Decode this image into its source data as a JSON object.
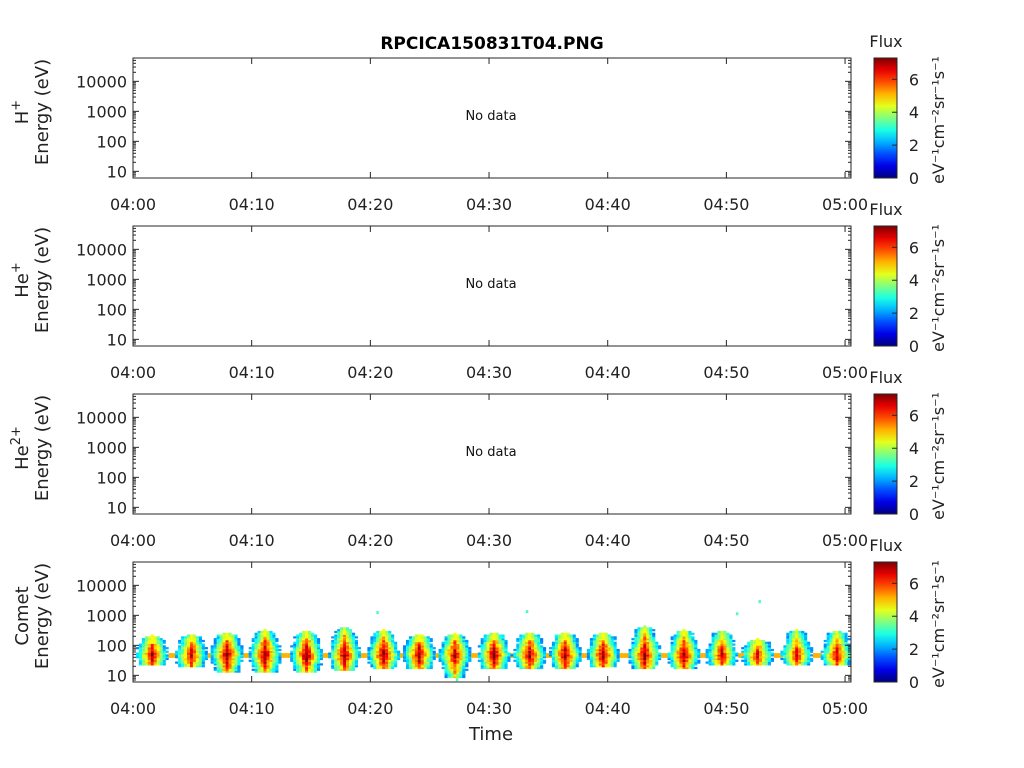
{
  "chart_data": {
    "type": "heatmap",
    "title": "RPCICA150831T04.PNG",
    "xlabel": "Time",
    "x_ticks": [
      "04:00",
      "04:10",
      "04:20",
      "04:30",
      "04:40",
      "04:50",
      "05:00"
    ],
    "xlim_minutes": [
      0,
      60.5
    ],
    "y_scale": "log",
    "y_ticks": [
      10,
      100,
      1000,
      10000
    ],
    "ylim": [
      6,
      60000
    ],
    "colorbar": {
      "title": "Flux",
      "units": "eV⁻¹cm⁻²sr⁻¹s⁻¹",
      "ticks": [
        0,
        2,
        4,
        6
      ],
      "range": [
        0,
        7.3
      ],
      "colormap": "jet"
    },
    "panels": [
      {
        "id": "h",
        "species": "H",
        "charge": "+",
        "ylabel": "Energy (eV)",
        "message": "No data"
      },
      {
        "id": "he",
        "species": "He",
        "charge": "+",
        "ylabel": "Energy (eV)",
        "message": "No data"
      },
      {
        "id": "he2",
        "species": "He",
        "charge": "2+",
        "ylabel": "Energy (eV)",
        "message": "No data"
      },
      {
        "id": "comet",
        "species": "Comet",
        "charge": "",
        "ylabel": "Energy (eV)",
        "message": ""
      }
    ],
    "comet_bursts": [
      {
        "t": 1.5,
        "peak": 7.0,
        "top": 200,
        "bottom": 20
      },
      {
        "t": 4.8,
        "peak": 6.8,
        "top": 220,
        "bottom": 18
      },
      {
        "t": 7.8,
        "peak": 7.3,
        "top": 260,
        "bottom": 12
      },
      {
        "t": 11.0,
        "peak": 7.3,
        "top": 320,
        "bottom": 12
      },
      {
        "t": 14.5,
        "peak": 7.3,
        "top": 300,
        "bottom": 12
      },
      {
        "t": 17.7,
        "peak": 7.2,
        "top": 380,
        "bottom": 14
      },
      {
        "t": 21.0,
        "peak": 7.3,
        "top": 320,
        "bottom": 16
      },
      {
        "t": 24.0,
        "peak": 7.2,
        "top": 220,
        "bottom": 16
      },
      {
        "t": 27.0,
        "peak": 7.0,
        "top": 240,
        "bottom": 8
      },
      {
        "t": 30.3,
        "peak": 7.2,
        "top": 260,
        "bottom": 16
      },
      {
        "t": 33.3,
        "peak": 7.1,
        "top": 260,
        "bottom": 16
      },
      {
        "t": 36.3,
        "peak": 7.2,
        "top": 260,
        "bottom": 16
      },
      {
        "t": 39.5,
        "peak": 7.2,
        "top": 260,
        "bottom": 18
      },
      {
        "t": 43.0,
        "peak": 7.3,
        "top": 420,
        "bottom": 16
      },
      {
        "t": 46.3,
        "peak": 7.2,
        "top": 320,
        "bottom": 16
      },
      {
        "t": 49.5,
        "peak": 6.8,
        "top": 300,
        "bottom": 20
      },
      {
        "t": 52.5,
        "peak": 6.6,
        "top": 160,
        "bottom": 20
      },
      {
        "t": 55.8,
        "peak": 6.7,
        "top": 320,
        "bottom": 20
      },
      {
        "t": 59.2,
        "peak": 6.8,
        "top": 300,
        "bottom": 20
      }
    ],
    "comet_outliers": [
      {
        "t": 20.5,
        "e": 1200
      },
      {
        "t": 33.1,
        "e": 1300
      },
      {
        "t": 50.8,
        "e": 1100
      },
      {
        "t": 52.7,
        "e": 2800
      },
      {
        "t": 27.2,
        "e": 7
      }
    ]
  }
}
